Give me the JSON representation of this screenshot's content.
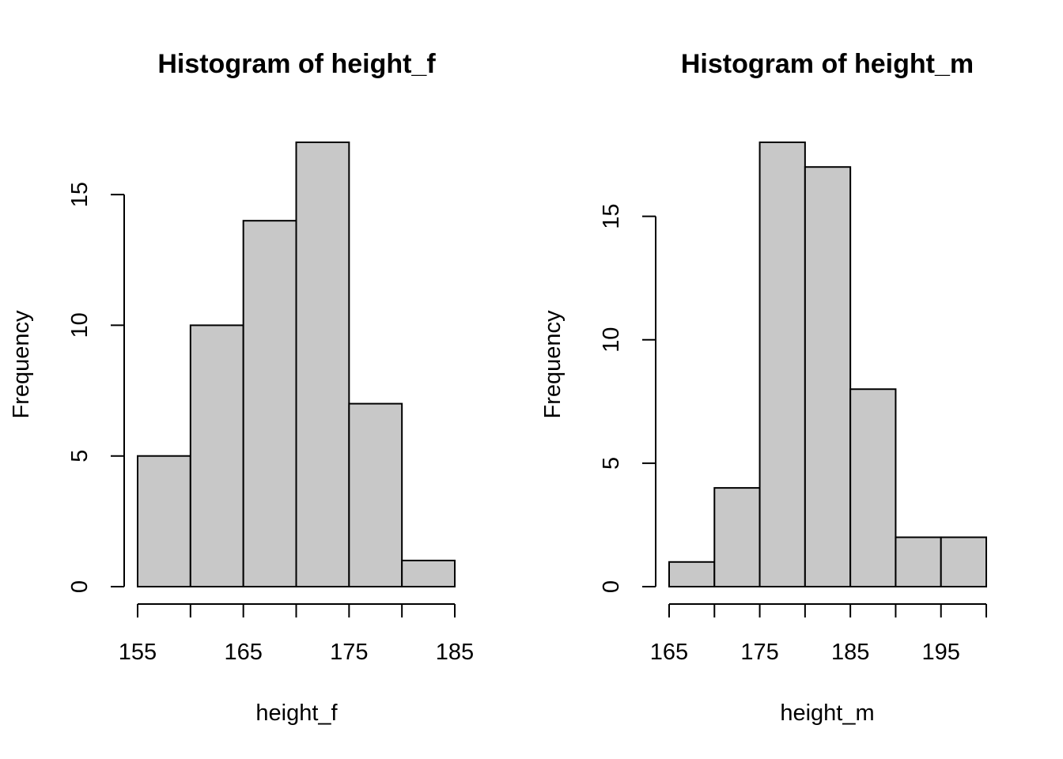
{
  "chart_data": [
    {
      "type": "bar",
      "title": "Histogram of height_f",
      "xlabel": "height_f",
      "ylabel": "Frequency",
      "breaks": [
        155,
        160,
        165,
        170,
        175,
        180,
        185
      ],
      "values": [
        5,
        10,
        14,
        17,
        7,
        1
      ],
      "xticks": [
        155,
        165,
        175,
        185
      ],
      "yticks": [
        0,
        5,
        10,
        15
      ],
      "xlim": [
        155,
        185
      ],
      "ylim": [
        0,
        17
      ],
      "bar_color": "#c8c8c8",
      "grid": false
    },
    {
      "type": "bar",
      "title": "Histogram of height_m",
      "xlabel": "height_m",
      "ylabel": "Frequency",
      "breaks": [
        165,
        170,
        175,
        180,
        185,
        190,
        195,
        200
      ],
      "values": [
        1,
        4,
        18,
        17,
        8,
        2,
        2
      ],
      "xticks": [
        165,
        175,
        185,
        195
      ],
      "yticks": [
        0,
        5,
        10,
        15
      ],
      "xlim": [
        165,
        200
      ],
      "ylim": [
        0,
        18
      ],
      "bar_color": "#c8c8c8",
      "grid": false
    }
  ]
}
